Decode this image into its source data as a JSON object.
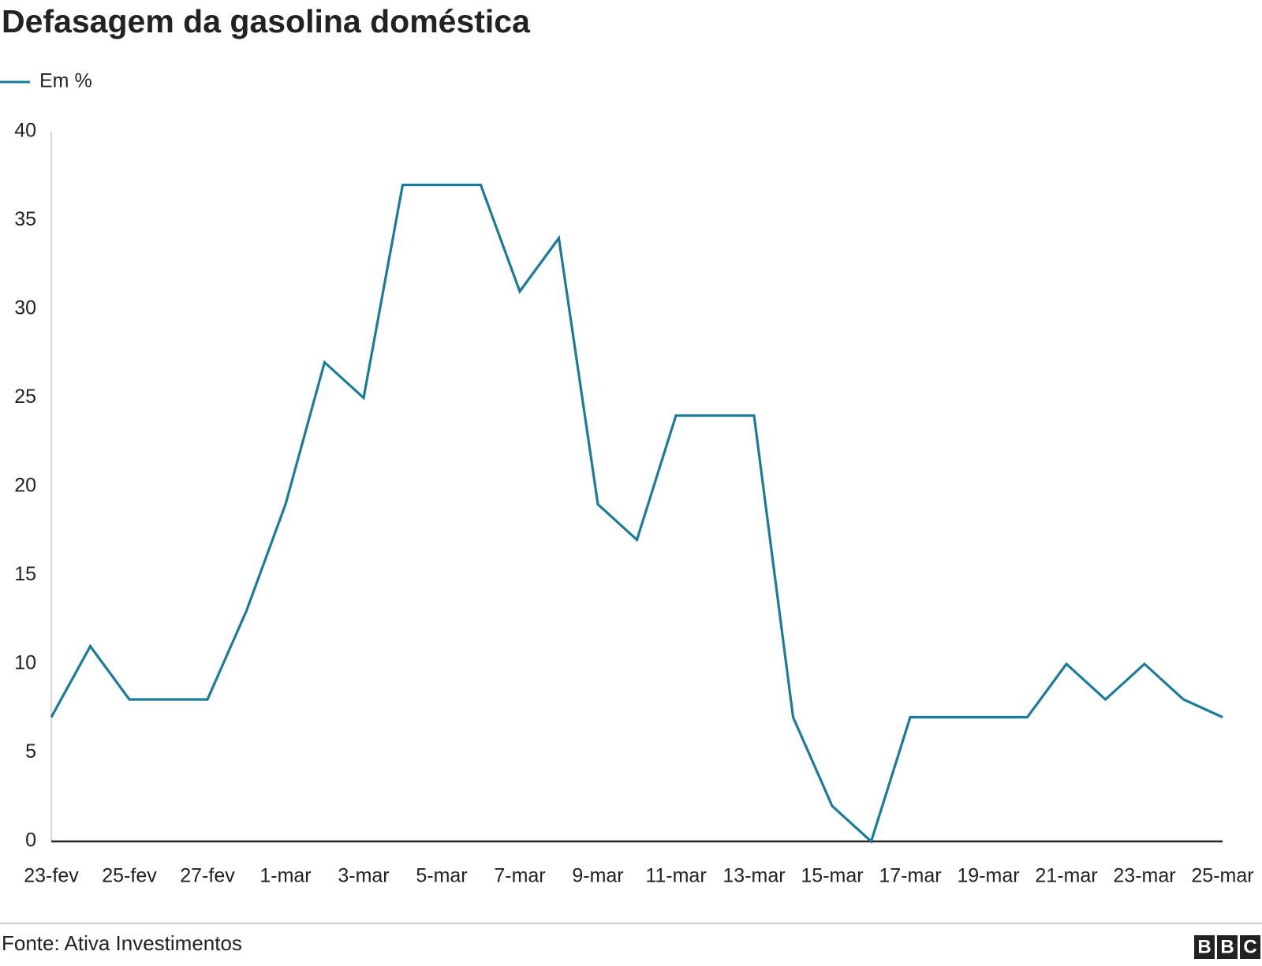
{
  "chart_data": {
    "type": "line",
    "title": "Defasagem da gasolina doméstica",
    "categories": [
      "23-fev",
      null,
      "25-fev",
      null,
      "27-fev",
      null,
      "1-mar",
      null,
      "3-mar",
      null,
      "5-mar",
      null,
      "7-mar",
      null,
      "9-mar",
      null,
      "11-mar",
      null,
      "13-mar",
      null,
      "15-mar",
      null,
      "17-mar",
      null,
      "19-mar",
      null,
      "21-mar",
      null,
      "23-mar",
      null,
      "25-mar"
    ],
    "series": [
      {
        "name": "Em %",
        "color": "#1b7b9b",
        "values": [
          7,
          11,
          8,
          8,
          8,
          13,
          19,
          27,
          25,
          37,
          37,
          37,
          31,
          34,
          19,
          17,
          24,
          24,
          24,
          7,
          2,
          0,
          7,
          7,
          7,
          7,
          10,
          8,
          10,
          8,
          7
        ]
      }
    ],
    "ylim": [
      0,
      40
    ],
    "yticks": [
      0,
      5,
      10,
      15,
      20,
      25,
      30,
      35,
      40
    ],
    "grid": false,
    "source": "Fonte: Ativa Investimentos",
    "logo": [
      "B",
      "B",
      "C"
    ]
  }
}
